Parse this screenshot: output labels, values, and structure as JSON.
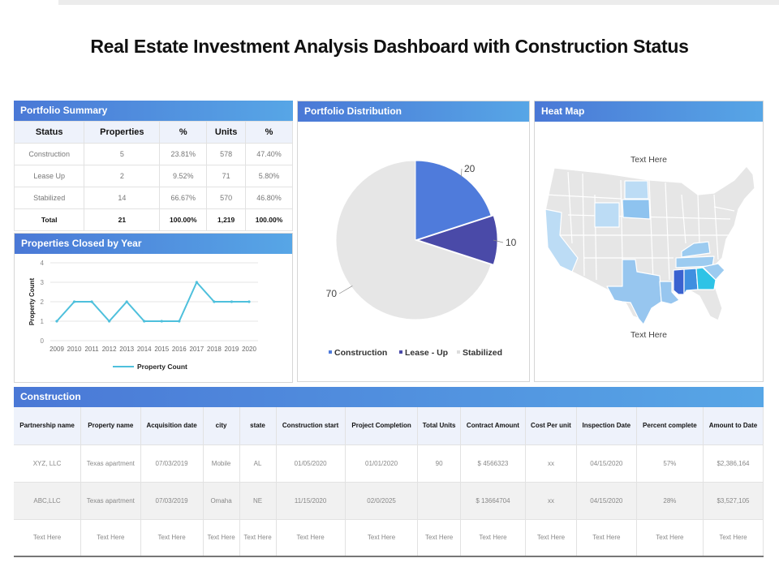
{
  "title": "Real Estate Investment Analysis Dashboard with Construction Status",
  "portfolio_summary": {
    "title": "Portfolio Summary",
    "headers": [
      "Status",
      "Properties",
      "%",
      "Units",
      "%"
    ],
    "rows": [
      [
        "Construction",
        "5",
        "23.81%",
        "578",
        "47.40%"
      ],
      [
        "Lease  Up",
        "2",
        "9.52%",
        "71",
        "5.80%"
      ],
      [
        "Stabilized",
        "14",
        "66.67%",
        "570",
        "46.80%"
      ]
    ],
    "total": [
      "Total",
      "21",
      "100.00%",
      "1,219",
      "100.00%"
    ]
  },
  "closed_by_year": {
    "title": "Properties Closed by Year"
  },
  "portfolio_distribution": {
    "title": "Portfolio Distribution"
  },
  "heat_map": {
    "title": "Heat Map",
    "label_top": "Text Here",
    "label_bottom": "Text Here",
    "colors": {
      "base": "#e6e6e6",
      "light": "#bcdcf5",
      "mid": "#97c6ef",
      "dark": "#3a62d0",
      "blue": "#3f8fe0",
      "cyan": "#2ec3e6"
    }
  },
  "construction": {
    "title": "Construction",
    "headers": [
      "Partnership name",
      "Property name",
      "Acquisition date",
      "city",
      "state",
      "Construction start",
      "Project Completion",
      "Total Units",
      "Contract Amount",
      "Cost Per unit",
      "Inspection Date",
      "Percent complete",
      "Amount to Date"
    ],
    "rows": [
      [
        "XYZ, LLC",
        "Texas apartment",
        "07/03/2019",
        "Mobile",
        "AL",
        "01/05/2020",
        "01/01/2020",
        "90",
        "$ 4566323",
        "xx",
        "04/15/2020",
        "57%",
        "$2,386,164"
      ],
      [
        "ABC,LLC",
        "Texas apartment",
        "07/03/2019",
        "Omaha",
        "NE",
        "11/15/2020",
        "02/0/2025",
        "",
        "$ 13664704",
        "xx",
        "04/15/2020",
        "28%",
        "$3,527,105"
      ],
      [
        "Text Here",
        "Text Here",
        "Text Here",
        "Text Here",
        "Text Here",
        "Text Here",
        "Text Here",
        "Text Here",
        "Text Here",
        "Text Here",
        "Text Here",
        "Text Here",
        "Text Here"
      ]
    ]
  },
  "chart_data": [
    {
      "type": "line",
      "title": "Properties Closed by Year",
      "xlabel": "",
      "ylabel": "Property Count",
      "categories": [
        "2009",
        "2010",
        "2011",
        "2012",
        "2013",
        "2014",
        "2015",
        "2016",
        "2017",
        "2018",
        "2019",
        "2020"
      ],
      "series": [
        {
          "name": "Property Count",
          "values": [
            1,
            2,
            2,
            1,
            2,
            1,
            1,
            1,
            3,
            2,
            2,
            2
          ],
          "color": "#4ec0dc"
        }
      ],
      "ylim": [
        0,
        4
      ],
      "yticks": [
        0,
        1,
        2,
        3,
        4
      ],
      "grid": true,
      "legend": "bottom"
    },
    {
      "type": "pie",
      "title": "Portfolio Distribution",
      "categories": [
        "Construction",
        "Lease - Up",
        "Stabilized"
      ],
      "values": [
        20,
        10,
        70
      ],
      "colors": [
        "#4f7bdb",
        "#4a4aa8",
        "#e6e6e6"
      ],
      "legend": "bottom"
    }
  ]
}
